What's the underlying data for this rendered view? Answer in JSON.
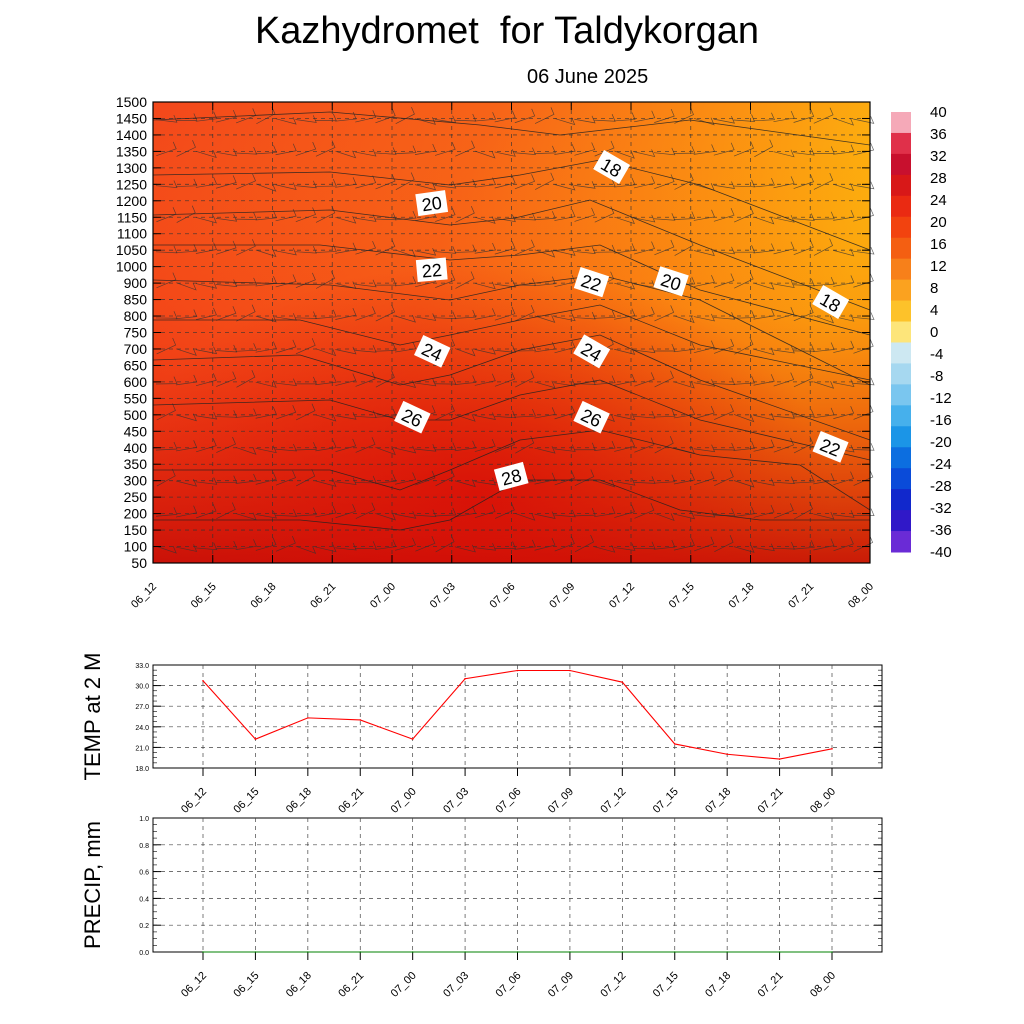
{
  "title": "Kazhydromet  for Taldykorgan",
  "subtitle": "06 June 2025",
  "chart_data": [
    {
      "type": "heatmap",
      "x_ticks": [
        "06_12",
        "06_15",
        "06_18",
        "06_21",
        "07_00",
        "07_03",
        "07_06",
        "07_09",
        "07_12",
        "07_15",
        "07_18",
        "07_21",
        "08_00"
      ],
      "y_ticks": [
        1500,
        1450,
        1400,
        1350,
        1300,
        1250,
        1200,
        1150,
        1100,
        1050,
        1000,
        900,
        850,
        800,
        750,
        700,
        650,
        600,
        550,
        500,
        450,
        400,
        350,
        300,
        250,
        200,
        150,
        100,
        50
      ],
      "colorbar_ticks": [
        40,
        36,
        32,
        28,
        24,
        20,
        16,
        12,
        8,
        4,
        0,
        -4,
        -8,
        -12,
        -16,
        -20,
        -24,
        -28,
        -32,
        -36,
        -40
      ],
      "contour_labels": [
        {
          "text": "18",
          "x": "07_11",
          "y": 1300
        },
        {
          "text": "20",
          "x": "07_02",
          "y": 1190
        },
        {
          "text": "22",
          "x": "07_02",
          "y": 975
        },
        {
          "text": "22",
          "x": "07_10",
          "y": 900
        },
        {
          "text": "20",
          "x": "07_14",
          "y": 905
        },
        {
          "text": "18",
          "x": "07_22",
          "y": 840
        },
        {
          "text": "24",
          "x": "07_02",
          "y": 690
        },
        {
          "text": "24",
          "x": "07_10",
          "y": 690
        },
        {
          "text": "26",
          "x": "07_01",
          "y": 490
        },
        {
          "text": "26",
          "x": "07_10",
          "y": 490
        },
        {
          "text": "28",
          "x": "07_06",
          "y": 310
        },
        {
          "text": "22",
          "x": "07_22",
          "y": 400
        }
      ]
    },
    {
      "type": "line",
      "ylabel": "TEMP at 2 M",
      "categories": [
        "06_12",
        "06_15",
        "06_18",
        "06_21",
        "07_00",
        "07_03",
        "07_06",
        "07_09",
        "07_12",
        "07_15",
        "07_18",
        "07_21",
        "08_00"
      ],
      "values": [
        30.7,
        22.2,
        25.3,
        25.0,
        22.2,
        31.0,
        32.2,
        32.2,
        30.5,
        21.5,
        20.0,
        19.3,
        20.8
      ],
      "y_ticks": [
        "33.0",
        "30.0",
        "27.0",
        "24.0",
        "21.0",
        "18.0"
      ],
      "ylim": [
        18,
        33
      ],
      "color": "#ff0000"
    },
    {
      "type": "line",
      "ylabel": "PRECIP, mm",
      "categories": [
        "06_12",
        "06_15",
        "06_18",
        "06_21",
        "07_00",
        "07_03",
        "07_06",
        "07_09",
        "07_12",
        "07_15",
        "07_18",
        "07_21",
        "08_00"
      ],
      "values": [
        0,
        0,
        0,
        0,
        0,
        0,
        0,
        0,
        0,
        0,
        0,
        0,
        0
      ],
      "y_ticks": [
        "1.0",
        "0.8",
        "0.6",
        "0.4",
        "0.2",
        "0.0"
      ],
      "ylim": [
        0,
        1
      ],
      "color": "#008000"
    }
  ]
}
